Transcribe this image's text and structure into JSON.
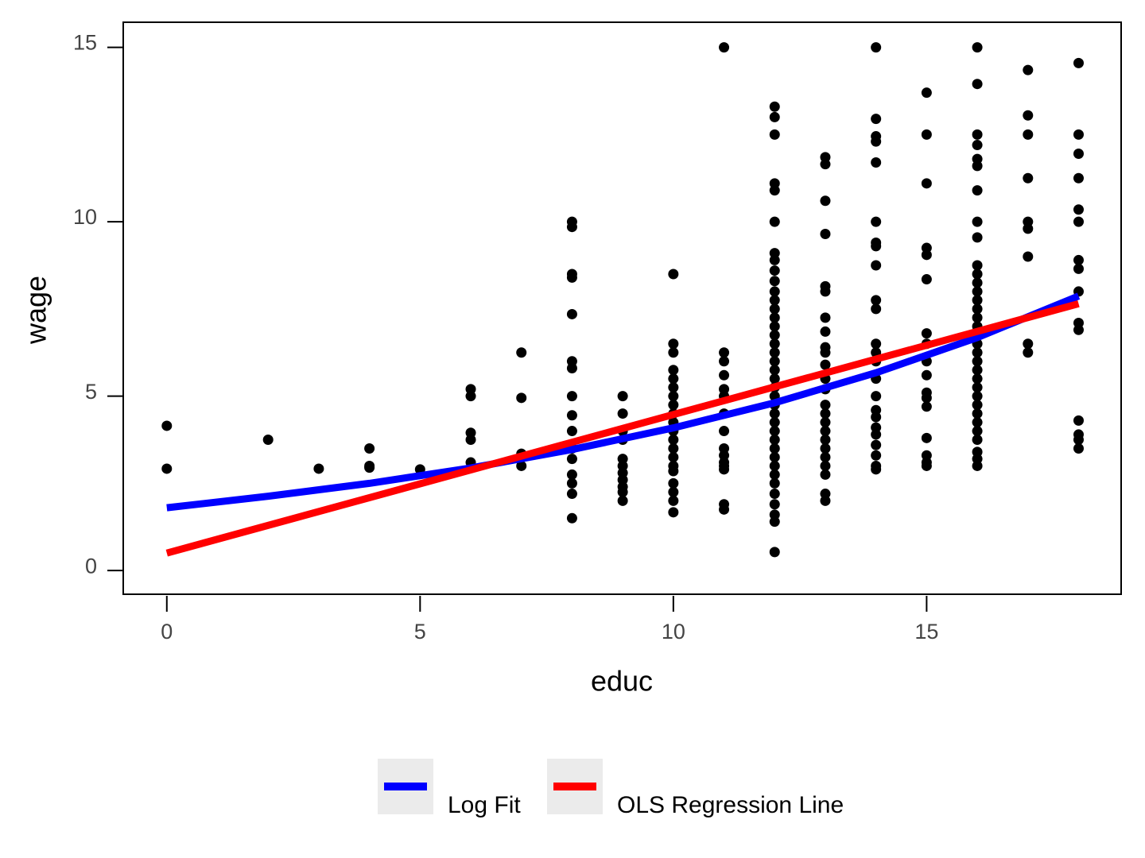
{
  "chart_data": {
    "type": "scatter",
    "x_label": "educ",
    "y_label": "wage",
    "xlim": [
      -0.86,
      18.84
    ],
    "ylim": [
      -0.68,
      15.72
    ],
    "xticks": [
      0,
      5,
      10,
      15
    ],
    "yticks": [
      0,
      5,
      10,
      15
    ],
    "grid": false,
    "legend": "bottom",
    "series": [
      {
        "type": "scatter",
        "color": "#000000",
        "x": [
          0,
          0,
          2,
          3,
          4,
          4,
          4,
          5,
          6,
          6,
          6,
          6,
          6,
          6,
          7,
          7,
          7,
          7,
          8,
          8,
          8,
          8,
          8,
          8,
          8,
          8,
          8,
          8,
          8,
          8,
          8,
          8,
          8,
          8,
          9,
          9,
          9,
          9,
          9,
          9,
          9,
          9,
          9,
          9,
          9,
          10,
          10,
          10,
          10,
          10,
          10,
          10,
          10,
          10,
          10,
          10,
          10,
          10,
          10,
          10,
          10,
          10,
          10,
          10,
          10,
          11,
          11,
          11,
          11,
          11,
          11,
          11,
          11,
          11,
          11,
          11,
          11,
          11,
          11,
          11,
          12,
          12,
          12,
          12,
          12,
          12,
          12,
          12,
          12,
          12,
          12,
          12,
          12,
          12,
          12,
          12,
          12,
          12,
          12,
          12,
          12,
          12,
          12,
          12,
          12,
          12,
          12,
          12,
          12,
          12,
          12,
          12,
          12,
          12,
          12,
          12,
          12,
          12,
          13,
          13,
          13,
          13,
          13,
          13,
          13,
          13,
          13,
          13,
          13,
          13,
          13,
          13,
          13,
          13,
          13,
          13,
          13,
          13,
          13,
          13,
          13,
          13,
          14,
          14,
          14,
          14,
          14,
          14,
          14,
          14,
          14,
          14,
          14,
          14,
          14,
          14,
          14,
          14,
          14,
          14,
          14,
          14,
          14,
          14,
          14,
          14,
          15,
          15,
          15,
          15,
          15,
          15,
          15,
          15,
          15,
          15,
          15,
          15,
          15,
          15,
          15,
          15,
          15,
          16,
          16,
          16,
          16,
          16,
          16,
          16,
          16,
          16,
          16,
          16,
          16,
          16,
          16,
          16,
          16,
          16,
          16,
          16,
          16,
          16,
          16,
          16,
          16,
          16,
          16,
          16,
          16,
          16,
          16,
          16,
          16,
          16,
          17,
          17,
          17,
          17,
          17,
          17,
          17,
          17,
          17,
          18,
          18,
          18,
          18,
          18,
          18,
          18,
          18,
          18,
          18,
          18,
          18,
          18,
          18,
          18
        ],
        "values": [
          4.15,
          2.92,
          3.75,
          2.92,
          3.5,
          3.0,
          2.95,
          2.9,
          5.2,
          5.0,
          3.95,
          3.75,
          3.1,
          2.95,
          6.25,
          4.95,
          3.35,
          3.0,
          10.0,
          9.85,
          8.5,
          8.4,
          7.35,
          6.0,
          5.8,
          5.0,
          4.45,
          4.0,
          3.5,
          3.2,
          2.75,
          2.5,
          2.2,
          1.5,
          5.0,
          4.5,
          4.0,
          3.75,
          3.2,
          3.0,
          2.8,
          2.6,
          2.4,
          2.25,
          2.0,
          8.5,
          6.5,
          6.25,
          5.75,
          5.5,
          5.25,
          5.0,
          4.75,
          4.5,
          4.25,
          4.0,
          3.75,
          3.5,
          3.25,
          3.0,
          2.85,
          2.5,
          2.25,
          2.0,
          1.67,
          15.0,
          6.25,
          6.0,
          5.6,
          5.2,
          5.0,
          4.5,
          4.0,
          3.5,
          3.3,
          3.1,
          3.0,
          2.9,
          1.9,
          1.75,
          13.3,
          13.0,
          12.5,
          11.1,
          10.9,
          10.0,
          9.1,
          8.9,
          8.6,
          8.3,
          8.0,
          7.75,
          7.5,
          7.25,
          7.0,
          6.75,
          6.5,
          6.25,
          6.0,
          5.75,
          5.5,
          5.25,
          5.0,
          4.75,
          4.5,
          4.25,
          4.0,
          3.75,
          3.5,
          3.25,
          3.0,
          2.75,
          2.5,
          2.2,
          1.9,
          1.6,
          1.4,
          0.53,
          11.85,
          11.65,
          10.6,
          9.65,
          8.15,
          8.0,
          7.25,
          6.85,
          6.4,
          6.25,
          5.9,
          5.5,
          5.2,
          4.75,
          4.5,
          4.25,
          4.0,
          3.75,
          3.5,
          3.25,
          3.0,
          2.75,
          2.2,
          2.0,
          15.0,
          12.95,
          12.45,
          12.3,
          11.7,
          10.0,
          9.4,
          9.3,
          8.75,
          7.75,
          7.5,
          6.5,
          6.25,
          6.0,
          5.5,
          5.0,
          4.6,
          4.4,
          4.1,
          3.9,
          3.6,
          3.3,
          3.0,
          2.9,
          13.7,
          12.5,
          11.1,
          9.25,
          9.05,
          8.35,
          6.8,
          6.5,
          6.0,
          5.6,
          5.1,
          4.95,
          4.7,
          3.8,
          3.3,
          3.1,
          3.0,
          15.0,
          13.95,
          12.5,
          12.2,
          11.8,
          11.6,
          10.9,
          10.0,
          9.55,
          8.75,
          8.5,
          8.25,
          8.0,
          7.75,
          7.5,
          7.25,
          7.0,
          6.75,
          6.5,
          6.25,
          6.0,
          5.75,
          5.5,
          5.25,
          5.0,
          4.75,
          4.5,
          4.25,
          4.0,
          3.75,
          3.4,
          3.2,
          3.0,
          14.35,
          13.05,
          12.5,
          11.25,
          10.0,
          9.8,
          9.0,
          6.5,
          6.25,
          14.55,
          12.5,
          11.95,
          11.25,
          10.35,
          10.0,
          8.9,
          8.65,
          8.0,
          7.1,
          6.9,
          4.3,
          3.9,
          3.75,
          3.5
        ]
      },
      {
        "type": "line",
        "name": "Log Fit",
        "color": "#0000ff",
        "x": [
          0,
          2,
          4,
          6,
          8,
          10,
          12,
          14,
          16,
          18
        ],
        "values": [
          1.8,
          2.13,
          2.5,
          2.94,
          3.47,
          4.09,
          4.81,
          5.67,
          6.68,
          7.87
        ]
      },
      {
        "type": "line",
        "name": "OLS Regression Line",
        "color": "#ff0000",
        "x": [
          0,
          18
        ],
        "values": [
          0.5,
          7.65
        ]
      }
    ]
  }
}
